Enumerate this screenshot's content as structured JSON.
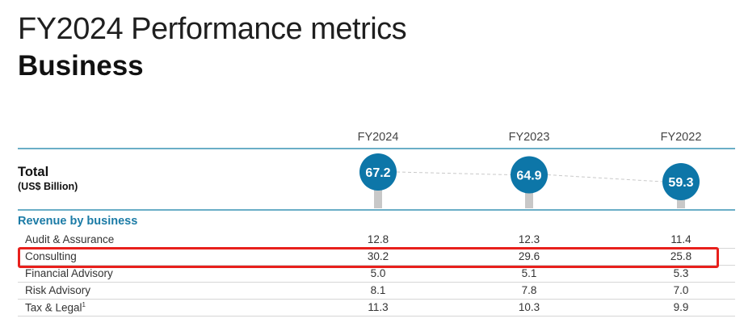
{
  "page": {
    "title": "FY2024 Performance metrics",
    "subtitle": "Business"
  },
  "chart_data": {
    "type": "table",
    "columns": [
      "FY2024",
      "FY2023",
      "FY2022"
    ],
    "total": {
      "label": "Total",
      "unit": "(US$ Billion)",
      "values": [
        67.2,
        64.9,
        59.3
      ],
      "value_labels": [
        "67.2",
        "64.9",
        "59.3"
      ]
    },
    "section": "Revenue by business",
    "rows": [
      {
        "label": "Audit & Assurance",
        "values": [
          "12.8",
          "12.3",
          "11.4"
        ]
      },
      {
        "label": "Consulting",
        "values": [
          "30.2",
          "29.6",
          "25.8"
        ],
        "highlighted": true
      },
      {
        "label": "Financial Advisory",
        "values": [
          "5.0",
          "5.1",
          "5.3"
        ]
      },
      {
        "label": "Risk Advisory",
        "values": [
          "8.1",
          "7.8",
          "7.0"
        ]
      },
      {
        "label": "Tax & Legal",
        "footnote": "1",
        "values": [
          "11.3",
          "10.3",
          "9.9"
        ]
      }
    ]
  },
  "colors": {
    "bubble": "#0d76a8",
    "stem": "#c8c8c8",
    "section_heading": "#1b7ba6",
    "rule": "#6aaec7",
    "highlight_border": "#e8201c"
  }
}
